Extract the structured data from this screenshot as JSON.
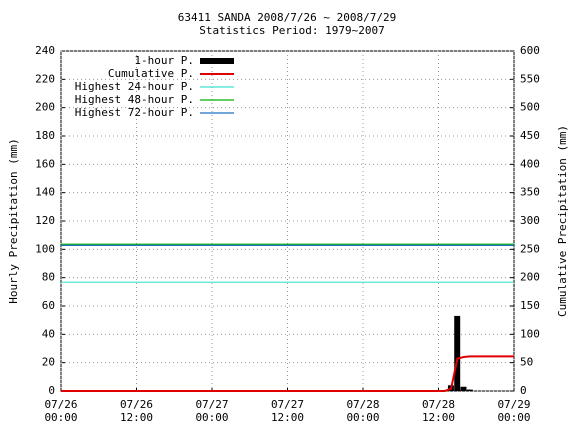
{
  "chart_data": {
    "type": "bar",
    "title": "63411 SANDA  2008/7/26 ~ 2008/7/29",
    "subtitle": "Statistics Period: 1979~2007",
    "y_label": "Hourly Precipitation (mm)",
    "y2_label": "Cumulative Precipitation (mm)",
    "xlim": [
      0,
      72
    ],
    "xticks": [
      {
        "value": 0,
        "label": [
          "07/26",
          "00:00"
        ]
      },
      {
        "value": 12,
        "label": [
          "07/26",
          "12:00"
        ]
      },
      {
        "value": 24,
        "label": [
          "07/27",
          "00:00"
        ]
      },
      {
        "value": 36,
        "label": [
          "07/27",
          "12:00"
        ]
      },
      {
        "value": 48,
        "label": [
          "07/28",
          "00:00"
        ]
      },
      {
        "value": 60,
        "label": [
          "07/28",
          "12:00"
        ]
      },
      {
        "value": 72,
        "label": [
          "07/29",
          "00:00"
        ]
      }
    ],
    "ylim": [
      0,
      240
    ],
    "yticks": [
      0,
      20,
      40,
      60,
      80,
      100,
      120,
      140,
      160,
      180,
      200,
      220,
      240
    ],
    "y2lim": [
      0,
      600
    ],
    "y2ticks": [
      0,
      50,
      100,
      150,
      200,
      250,
      300,
      350,
      400,
      450,
      500,
      550,
      600
    ],
    "grid": true,
    "legend": "top-left",
    "series": [
      {
        "name": "1-hour P.",
        "type": "bar",
        "color": "#000000",
        "x": [
          62,
          63,
          64,
          65
        ],
        "values": [
          4,
          53,
          3,
          1
        ]
      },
      {
        "name": "Cumulative P.",
        "type": "line",
        "color": "#e00000",
        "axis": "y2",
        "x": [
          0,
          61,
          62,
          63,
          64,
          65,
          72
        ],
        "values": [
          0,
          0,
          4,
          57,
          60,
          61,
          61
        ]
      },
      {
        "name": "Highest 24-hour P.",
        "type": "hline",
        "color": "#40e0d0",
        "axis": "y2",
        "values": [
          192
        ]
      },
      {
        "name": "Highest 48-hour P.",
        "type": "hline",
        "color": "#00b000",
        "axis": "y2",
        "values": [
          259
        ]
      },
      {
        "name": "Highest 72-hour P.",
        "type": "hline",
        "color": "#1e70c0",
        "axis": "y2",
        "values": [
          257
        ]
      }
    ]
  }
}
